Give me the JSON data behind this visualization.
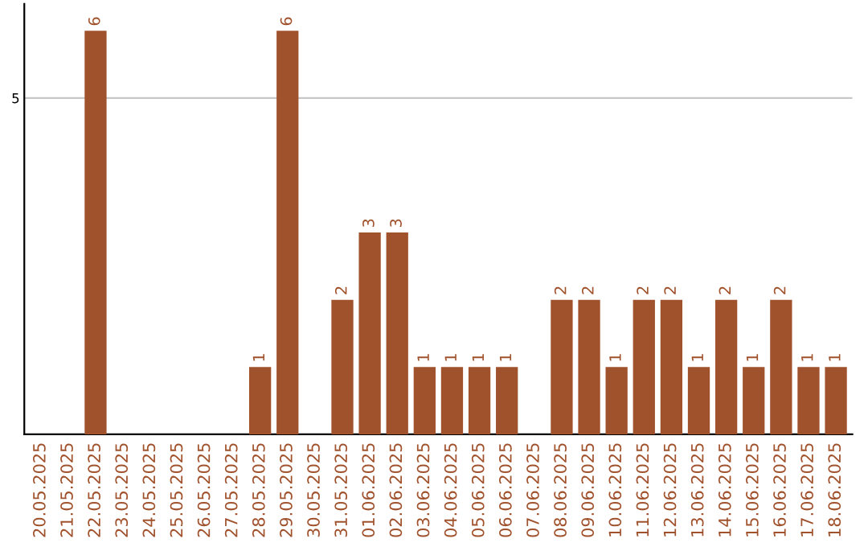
{
  "chart_data": {
    "type": "bar",
    "categories": [
      "20.05.2025",
      "21.05.2025",
      "22.05.2025",
      "23.05.2025",
      "24.05.2025",
      "25.05.2025",
      "26.05.2025",
      "27.05.2025",
      "28.05.2025",
      "29.05.2025",
      "30.05.2025",
      "31.05.2025",
      "01.06.2025",
      "02.06.2025",
      "03.06.2025",
      "04.06.2025",
      "05.06.2025",
      "06.06.2025",
      "07.06.2025",
      "08.06.2025",
      "09.06.2025",
      "10.06.2025",
      "11.06.2025",
      "12.06.2025",
      "13.06.2025",
      "14.06.2025",
      "15.06.2025",
      "16.06.2025",
      "17.06.2025",
      "18.06.2025"
    ],
    "values": [
      0,
      0,
      6,
      0,
      0,
      0,
      0,
      0,
      1,
      6,
      0,
      2,
      3,
      3,
      1,
      1,
      1,
      1,
      0,
      2,
      2,
      1,
      2,
      2,
      1,
      2,
      1,
      2,
      1,
      1
    ],
    "value_labels": [
      null,
      null,
      "6",
      null,
      null,
      null,
      null,
      null,
      "1",
      "6",
      null,
      "2",
      "3",
      "3",
      "1",
      "1",
      "1",
      "1",
      null,
      "2",
      "2",
      "1",
      "2",
      "2",
      "1",
      "2",
      "1",
      "2",
      "1",
      "1"
    ],
    "color": "#a0522d",
    "ylim": [
      0,
      6.4
    ],
    "yticks": [
      5
    ],
    "grid": "y",
    "legend": false
  }
}
